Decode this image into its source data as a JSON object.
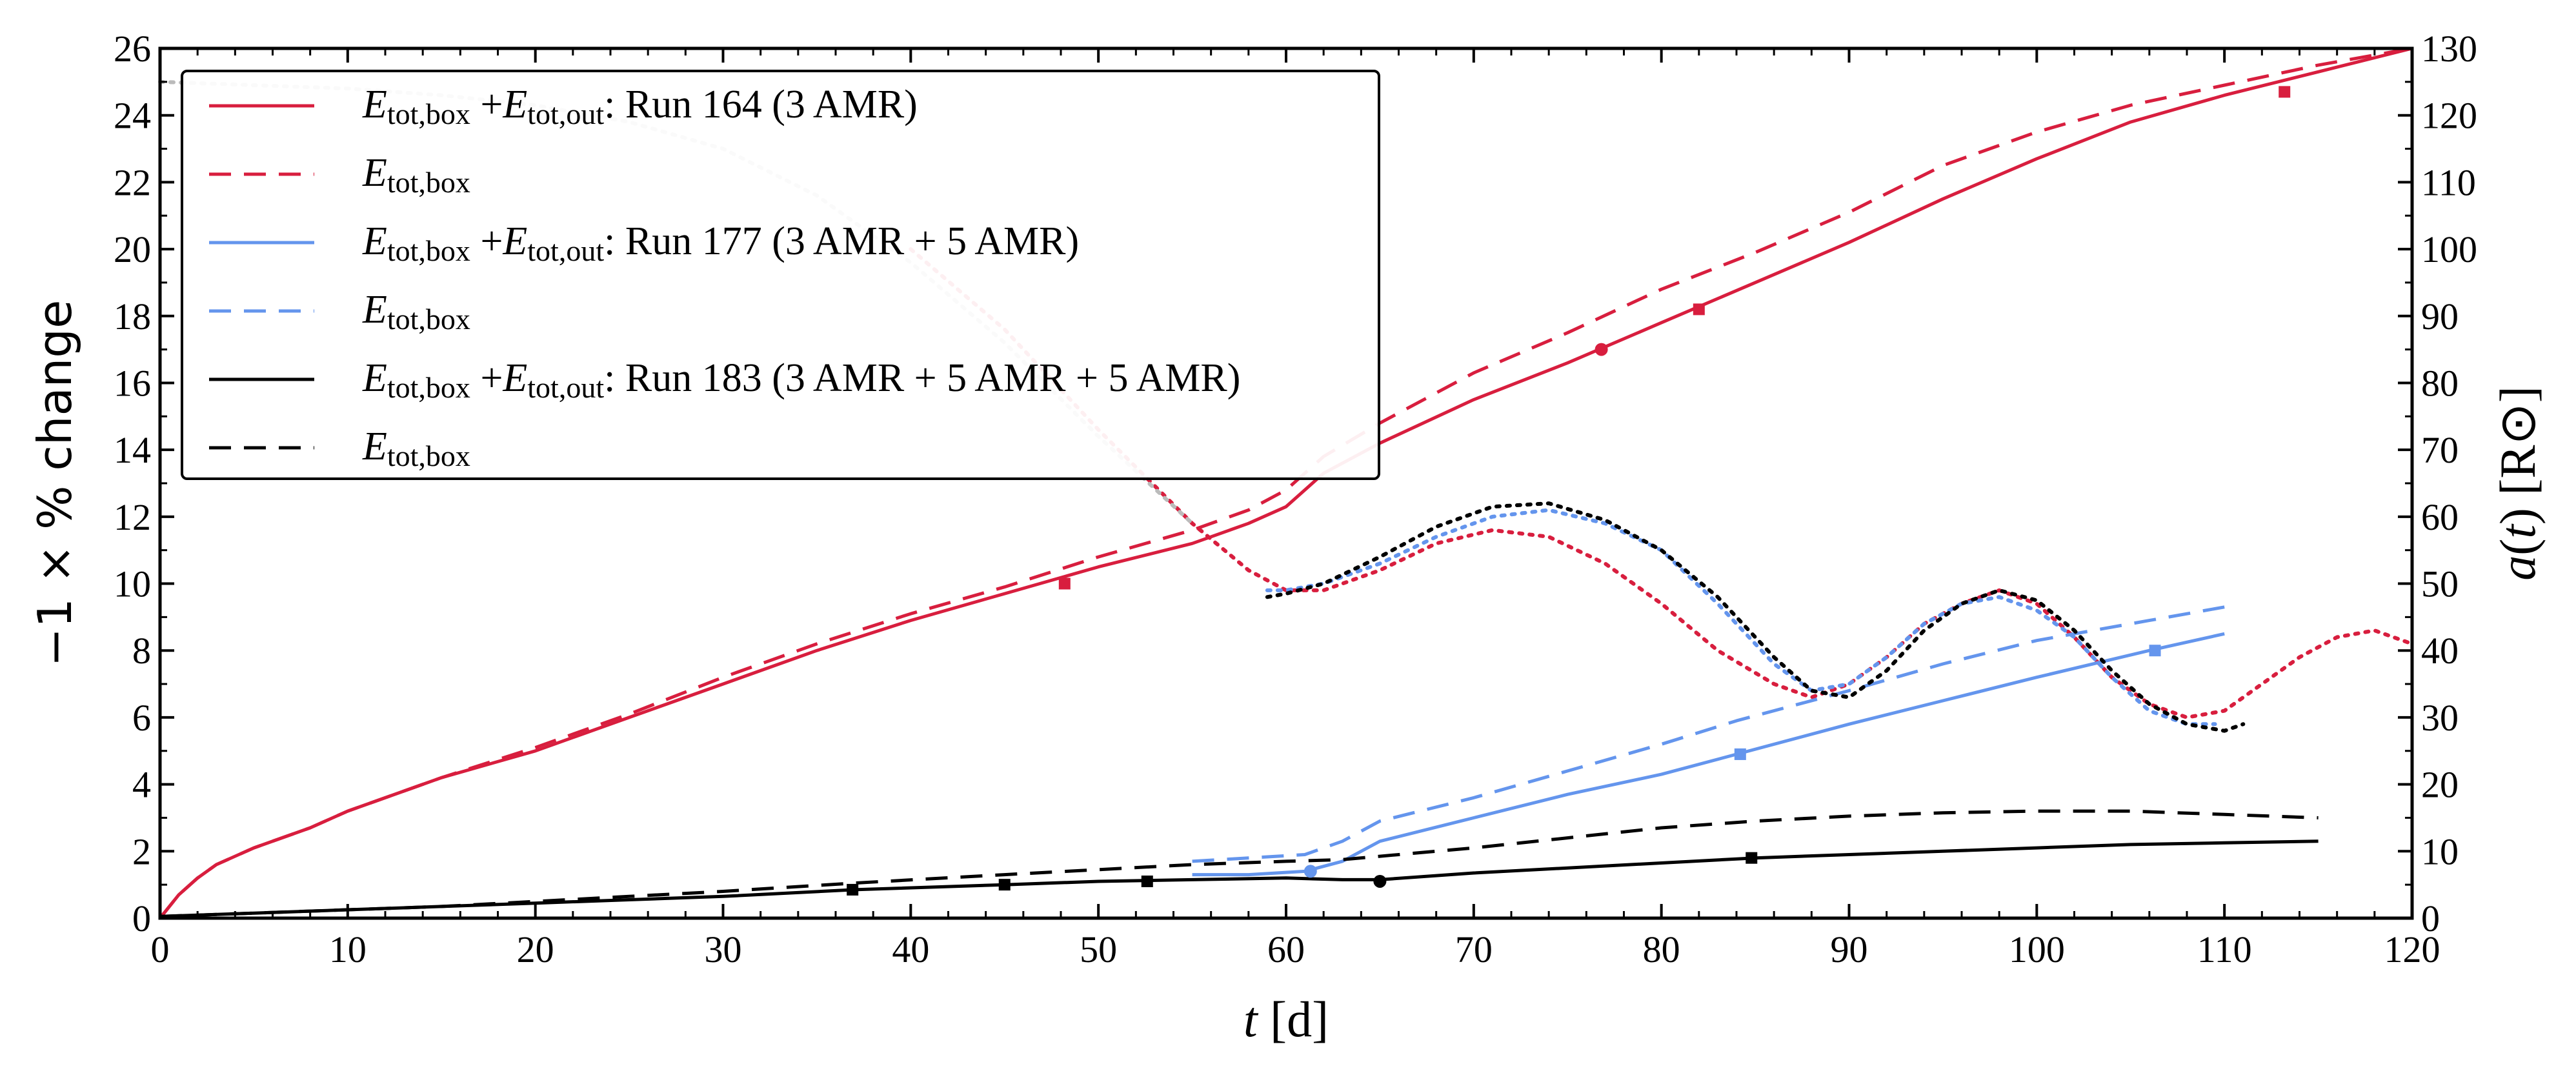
{
  "chart_data": {
    "type": "line",
    "xlabel": "t  [d]",
    "ylabel_left": "−1 × % change",
    "ylabel_right": "a(t) [R⊙]",
    "xlim": [
      0,
      120
    ],
    "ylim_left": [
      0,
      26
    ],
    "ylim_right": [
      0,
      130
    ],
    "x_ticks": [
      0,
      10,
      20,
      30,
      40,
      50,
      60,
      70,
      80,
      90,
      100,
      110,
      120
    ],
    "y_left_ticks": [
      0,
      2,
      4,
      6,
      8,
      10,
      12,
      14,
      16,
      18,
      20,
      22,
      24,
      26
    ],
    "y_right_ticks": [
      0,
      10,
      20,
      30,
      40,
      50,
      60,
      70,
      80,
      90,
      100,
      110,
      120,
      130
    ],
    "legend_position": "top-left",
    "legend": [
      {
        "sym": "E",
        "sub": "tot,box",
        "plus": "+",
        "sym2": "E",
        "sub2": "tot,out",
        "rest": ": Run 164 (3 AMR)",
        "color": "#d81e3e",
        "dash": "solid"
      },
      {
        "sym": "E",
        "sub": "tot,box",
        "plus": "",
        "sym2": "",
        "sub2": "",
        "rest": "",
        "color": "#d81e3e",
        "dash": "dashed"
      },
      {
        "sym": "E",
        "sub": "tot,box",
        "plus": "+",
        "sym2": "E",
        "sub2": "tot,out",
        "rest": ": Run 177 (3 AMR + 5 AMR)",
        "color": "#6495ed",
        "dash": "solid"
      },
      {
        "sym": "E",
        "sub": "tot,box",
        "plus": "",
        "sym2": "",
        "sub2": "",
        "rest": "",
        "color": "#6495ed",
        "dash": "dashed"
      },
      {
        "sym": "E",
        "sub": "tot,box",
        "plus": "+",
        "sym2": "E",
        "sub2": "tot,out",
        "rest": ": Run 183 (3 AMR + 5 AMR + 5 AMR)",
        "color": "#000000",
        "dash": "solid"
      },
      {
        "sym": "E",
        "sub": "tot,box",
        "plus": "",
        "sym2": "",
        "sub2": "",
        "rest": "",
        "color": "#000000",
        "dash": "dashed"
      }
    ],
    "series": [
      {
        "name": "Run 164 E_tot,box + E_tot,out",
        "axis": "left",
        "color": "#d81e3e",
        "dash": "solid",
        "x": [
          0,
          1,
          2,
          3,
          5,
          8,
          10,
          15,
          20,
          25,
          30,
          35,
          40,
          45,
          50,
          55,
          58,
          60,
          62,
          65,
          70,
          75,
          80,
          85,
          90,
          95,
          100,
          105,
          110,
          115,
          120
        ],
        "y": [
          0,
          0.7,
          1.2,
          1.6,
          2.1,
          2.7,
          3.2,
          4.2,
          5.0,
          6.0,
          7.0,
          8.0,
          8.9,
          9.7,
          10.5,
          11.2,
          11.8,
          12.3,
          13.3,
          14.2,
          15.5,
          16.6,
          17.8,
          19.0,
          20.2,
          21.5,
          22.7,
          23.8,
          24.6,
          25.3,
          26.0
        ]
      },
      {
        "name": "Run 164 E_tot,box",
        "axis": "left",
        "color": "#d81e3e",
        "dash": "dashed",
        "x": [
          0,
          1,
          2,
          3,
          5,
          8,
          10,
          15,
          20,
          25,
          30,
          35,
          40,
          45,
          50,
          55,
          58,
          60,
          62,
          65,
          70,
          75,
          80,
          85,
          90,
          95,
          100,
          105,
          110,
          115,
          120
        ],
        "y": [
          0,
          0.7,
          1.2,
          1.6,
          2.1,
          2.7,
          3.2,
          4.2,
          5.1,
          6.1,
          7.2,
          8.2,
          9.1,
          9.9,
          10.8,
          11.6,
          12.2,
          12.8,
          13.8,
          14.8,
          16.3,
          17.5,
          18.8,
          19.9,
          21.1,
          22.5,
          23.5,
          24.3,
          24.9,
          25.5,
          26.0
        ]
      },
      {
        "name": "Run 164 a(t)",
        "axis": "right",
        "color": "#d81e3e",
        "dash": "dotted",
        "x": [
          40,
          45,
          50,
          55,
          58,
          60,
          62,
          65,
          68,
          71,
          74,
          77,
          80,
          83,
          86,
          88,
          90,
          92,
          94,
          96,
          98,
          100,
          102,
          104,
          106,
          108,
          110,
          112,
          114,
          116,
          118,
          120
        ],
        "y": [
          100,
          88,
          73,
          59,
          52,
          49,
          49,
          52,
          56,
          58,
          57,
          53,
          47,
          40,
          35,
          33,
          35,
          39,
          44,
          47,
          49,
          47,
          42,
          36,
          32,
          30,
          31,
          35,
          39,
          42,
          43,
          41
        ]
      },
      {
        "name": "Run 177 E_tot,box + E_tot,out",
        "axis": "left",
        "color": "#6495ed",
        "dash": "solid",
        "x": [
          55,
          58,
          61,
          63,
          65,
          70,
          75,
          80,
          84,
          90,
          95,
          100,
          106,
          110
        ],
        "y": [
          1.3,
          1.3,
          1.4,
          1.7,
          2.3,
          3.0,
          3.7,
          4.3,
          4.9,
          5.8,
          6.5,
          7.2,
          8.0,
          8.5
        ]
      },
      {
        "name": "Run 177 E_tot,box",
        "axis": "left",
        "color": "#6495ed",
        "dash": "dashed",
        "x": [
          55,
          58,
          61,
          63,
          65,
          70,
          75,
          80,
          84,
          90,
          95,
          100,
          106,
          110
        ],
        "y": [
          1.7,
          1.8,
          1.9,
          2.3,
          2.9,
          3.6,
          4.4,
          5.2,
          5.9,
          6.8,
          7.6,
          8.3,
          8.9,
          9.3
        ]
      },
      {
        "name": "Run 177 a(t)",
        "axis": "right",
        "color": "#6495ed",
        "dash": "dotted",
        "x": [
          59,
          60,
          62,
          65,
          68,
          71,
          74,
          77,
          80,
          83,
          86,
          88,
          90,
          92,
          94,
          96,
          98,
          100,
          102,
          104,
          106,
          108,
          109.5
        ],
        "y": [
          49,
          49,
          50,
          53,
          57,
          60,
          61,
          59,
          55,
          47,
          38,
          34,
          35,
          39,
          44,
          47,
          48,
          46,
          42,
          36,
          31,
          29,
          29
        ]
      },
      {
        "name": "Run 183 E_tot,box + E_tot,out",
        "axis": "left",
        "color": "#000000",
        "dash": "solid",
        "x": [
          0,
          5,
          10,
          15,
          20,
          25,
          30,
          37,
          45,
          50,
          55,
          60,
          63,
          65,
          70,
          75,
          80,
          85,
          90,
          95,
          100,
          105,
          110,
          115
        ],
        "y": [
          0.05,
          0.15,
          0.25,
          0.35,
          0.45,
          0.55,
          0.65,
          0.85,
          1.0,
          1.1,
          1.15,
          1.2,
          1.15,
          1.15,
          1.35,
          1.5,
          1.65,
          1.8,
          1.9,
          2.0,
          2.1,
          2.2,
          2.25,
          2.3
        ]
      },
      {
        "name": "Run 183 E_tot,box",
        "axis": "left",
        "color": "#000000",
        "dash": "dashed",
        "x": [
          0,
          5,
          10,
          15,
          20,
          25,
          30,
          37,
          45,
          50,
          55,
          60,
          63,
          65,
          70,
          75,
          80,
          85,
          90,
          95,
          100,
          105,
          110,
          115
        ],
        "y": [
          0.05,
          0.15,
          0.25,
          0.35,
          0.5,
          0.65,
          0.8,
          1.05,
          1.3,
          1.45,
          1.6,
          1.7,
          1.75,
          1.85,
          2.1,
          2.4,
          2.7,
          2.9,
          3.05,
          3.15,
          3.2,
          3.2,
          3.1,
          3.0
        ]
      },
      {
        "name": "Run 183 a(t)",
        "axis": "right",
        "color": "#000000",
        "dash": "dotted",
        "x": [
          59,
          60,
          62,
          65,
          68,
          71,
          74,
          77,
          80,
          83,
          86,
          88,
          90,
          92,
          94,
          96,
          98,
          100,
          102,
          104,
          106,
          108,
          110,
          111
        ],
        "y": [
          48,
          48.5,
          50,
          54,
          58.5,
          61.5,
          62,
          59.5,
          55,
          48,
          39,
          34,
          33,
          37,
          43,
          47,
          49,
          47.5,
          43,
          37,
          32,
          29,
          28,
          29
        ]
      },
      {
        "name": "Early a(t) (shared)",
        "axis": "right",
        "color": "#bbbbbb",
        "dash": "dotted",
        "x": [
          0,
          5,
          10,
          15,
          20,
          25,
          30,
          35,
          40,
          45,
          50,
          55
        ],
        "y": [
          125,
          124.5,
          124,
          123,
          121.5,
          119,
          115,
          108,
          98,
          86,
          72,
          59
        ]
      }
    ],
    "markers": [
      {
        "x": 48.2,
        "y": 10.0,
        "color": "#d81e3e",
        "shape": "square"
      },
      {
        "x": 76.8,
        "y": 17.0,
        "color": "#d81e3e",
        "shape": "circle"
      },
      {
        "x": 82.0,
        "y": 18.2,
        "color": "#d81e3e",
        "shape": "square"
      },
      {
        "x": 113.2,
        "y": 24.7,
        "color": "#d81e3e",
        "shape": "square"
      },
      {
        "x": 61.3,
        "y": 1.4,
        "color": "#6495ed",
        "shape": "circle"
      },
      {
        "x": 84.2,
        "y": 4.9,
        "color": "#6495ed",
        "shape": "square"
      },
      {
        "x": 106.3,
        "y": 8.0,
        "color": "#6495ed",
        "shape": "square"
      },
      {
        "x": 36.9,
        "y": 0.85,
        "color": "#000000",
        "shape": "square"
      },
      {
        "x": 45.0,
        "y": 1.0,
        "color": "#000000",
        "shape": "square"
      },
      {
        "x": 52.6,
        "y": 1.1,
        "color": "#000000",
        "shape": "square"
      },
      {
        "x": 65.0,
        "y": 1.1,
        "color": "#000000",
        "shape": "circle"
      },
      {
        "x": 84.8,
        "y": 1.8,
        "color": "#000000",
        "shape": "square"
      }
    ]
  }
}
